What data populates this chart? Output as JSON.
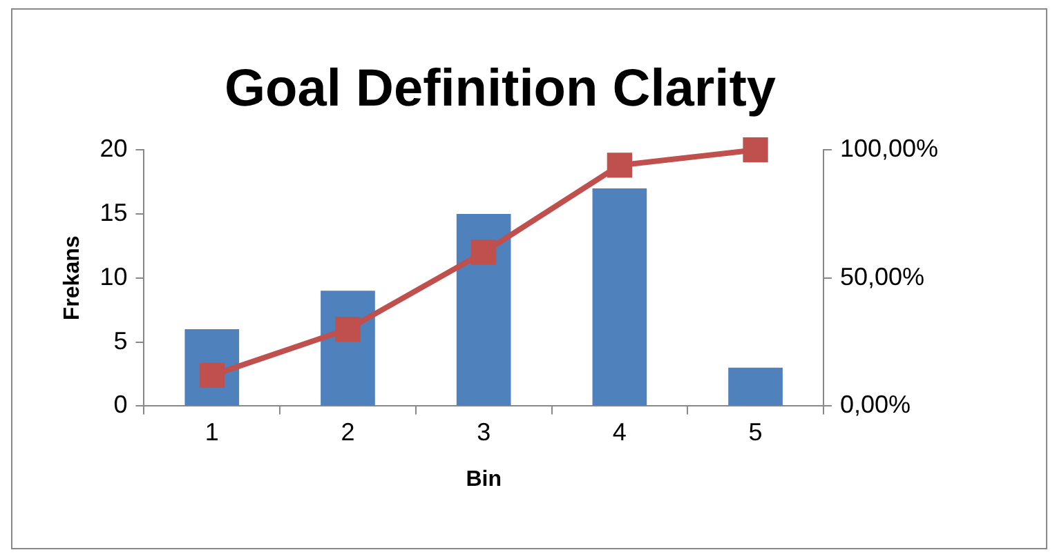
{
  "chart_data": {
    "type": "bar",
    "title": "Goal Definition Clarity",
    "xlabel": "Bin",
    "ylabel": "Frekans",
    "categories": [
      "1",
      "2",
      "3",
      "4",
      "5"
    ],
    "series": [
      {
        "color": "#4f81bd",
        "values": [
          6,
          9,
          15,
          17,
          3
        ]
      },
      {
        "type": "line",
        "color": "#c0504d",
        "axis": "y2",
        "marker": "square",
        "values": [
          12,
          30,
          60,
          94,
          100
        ]
      }
    ],
    "ylim": [
      0,
      20
    ],
    "yticks": [
      0,
      5,
      10,
      15,
      20
    ],
    "y2lim": [
      0,
      100
    ],
    "y2ticks": [
      {
        "value": 0,
        "label": "0,00%"
      },
      {
        "value": 50,
        "label": "50,00%"
      },
      {
        "value": 100,
        "label": "100,00%"
      }
    ],
    "grid": false,
    "legend": false
  }
}
